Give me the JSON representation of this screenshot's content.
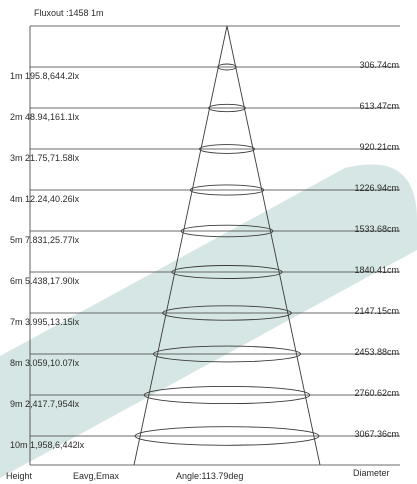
{
  "header": {
    "flux": "Fluxout :1458 1m"
  },
  "rows": [
    {
      "height": "1m",
      "values": "195.8,644.2lx",
      "diameter": "306.74cm"
    },
    {
      "height": "2m",
      "values": "48.94,161.1lx",
      "diameter": "613.47cm"
    },
    {
      "height": "3m",
      "values": "21.75,71.58lx",
      "diameter": "920.21cm"
    },
    {
      "height": "4m",
      "values": "12.24,40.26lx",
      "diameter": "1226.94cm"
    },
    {
      "height": "5m",
      "values": "7.831,25.77lx",
      "diameter": "1533.68cm"
    },
    {
      "height": "6m",
      "values": "5.438,17.90lx",
      "diameter": "1840.41cm"
    },
    {
      "height": "7m",
      "values": "3.995,13.15lx",
      "diameter": "2147.15cm"
    },
    {
      "height": "8m",
      "values": "3.059,10.07lx",
      "diameter": "2453.88cm"
    },
    {
      "height": "9m",
      "values": "2,417.7,954lx",
      "diameter": "2760.62cm"
    },
    {
      "height": "10m",
      "values": "1,958,6,442lx",
      "diameter": "3067.36cm"
    }
  ],
  "footer": {
    "height_label": "Height",
    "values_label": "Eavg,Emax",
    "angle_label": "Angle:113.79deg",
    "diameter_label": "Diameter"
  },
  "colors": {
    "band": "#d6e6e4",
    "lines": "#3a3a3a",
    "text": "#2b2b2b"
  }
}
